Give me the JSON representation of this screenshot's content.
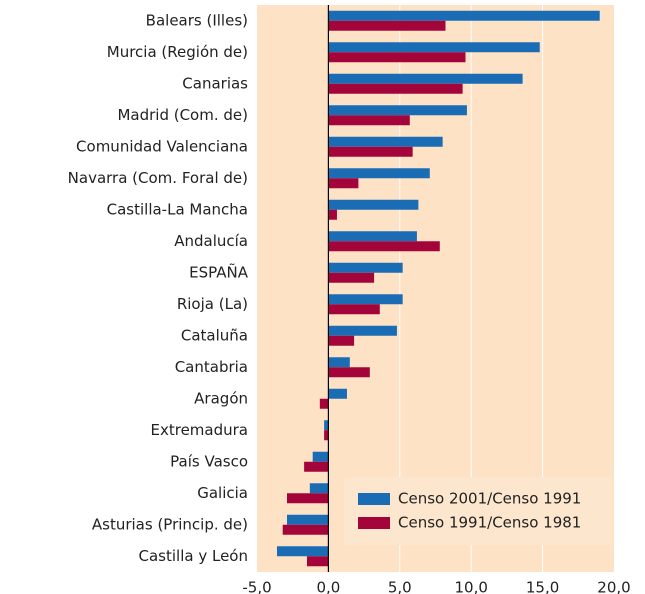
{
  "chart_data": {
    "type": "hbar",
    "categories": [
      "Balears (Illes)",
      "Murcia (Región de)",
      "Canarias",
      "Madrid (Com. de)",
      "Comunidad Valenciana",
      "Navarra (Com. Foral de)",
      "Castilla-La Mancha",
      "Andalucía",
      "ESPAÑA",
      "Rioja (La)",
      "Cataluña",
      "Cantabria",
      "Aragón",
      "Extremadura",
      "País Vasco",
      "Galicia",
      "Asturias (Princip. de)",
      "Castilla y León"
    ],
    "series": [
      {
        "name": "Censo 2001/Censo 1991",
        "color": "#1a6db5",
        "values": [
          19.0,
          14.8,
          13.6,
          9.7,
          8.0,
          7.1,
          6.3,
          6.2,
          5.2,
          5.2,
          4.8,
          1.5,
          1.3,
          -0.3,
          -1.1,
          -1.3,
          -2.9,
          -3.6
        ]
      },
      {
        "name": "Censo 1991/Censo 1981",
        "color": "#a3053b",
        "values": [
          8.2,
          9.6,
          9.4,
          5.7,
          5.9,
          2.1,
          0.6,
          7.8,
          3.2,
          3.6,
          1.8,
          2.9,
          -0.6,
          -0.3,
          -1.7,
          -2.9,
          -3.2,
          -1.5
        ]
      }
    ],
    "xlim": [
      -5,
      20
    ],
    "xticks": [
      {
        "value": -5,
        "label": "-5,0"
      },
      {
        "value": 0,
        "label": "0,0"
      },
      {
        "value": 5,
        "label": "5,0"
      },
      {
        "value": 10,
        "label": "10,0"
      },
      {
        "value": 15,
        "label": "15,0"
      },
      {
        "value": 20,
        "label": "20,0"
      }
    ],
    "grid": true,
    "legend": "lower right"
  }
}
